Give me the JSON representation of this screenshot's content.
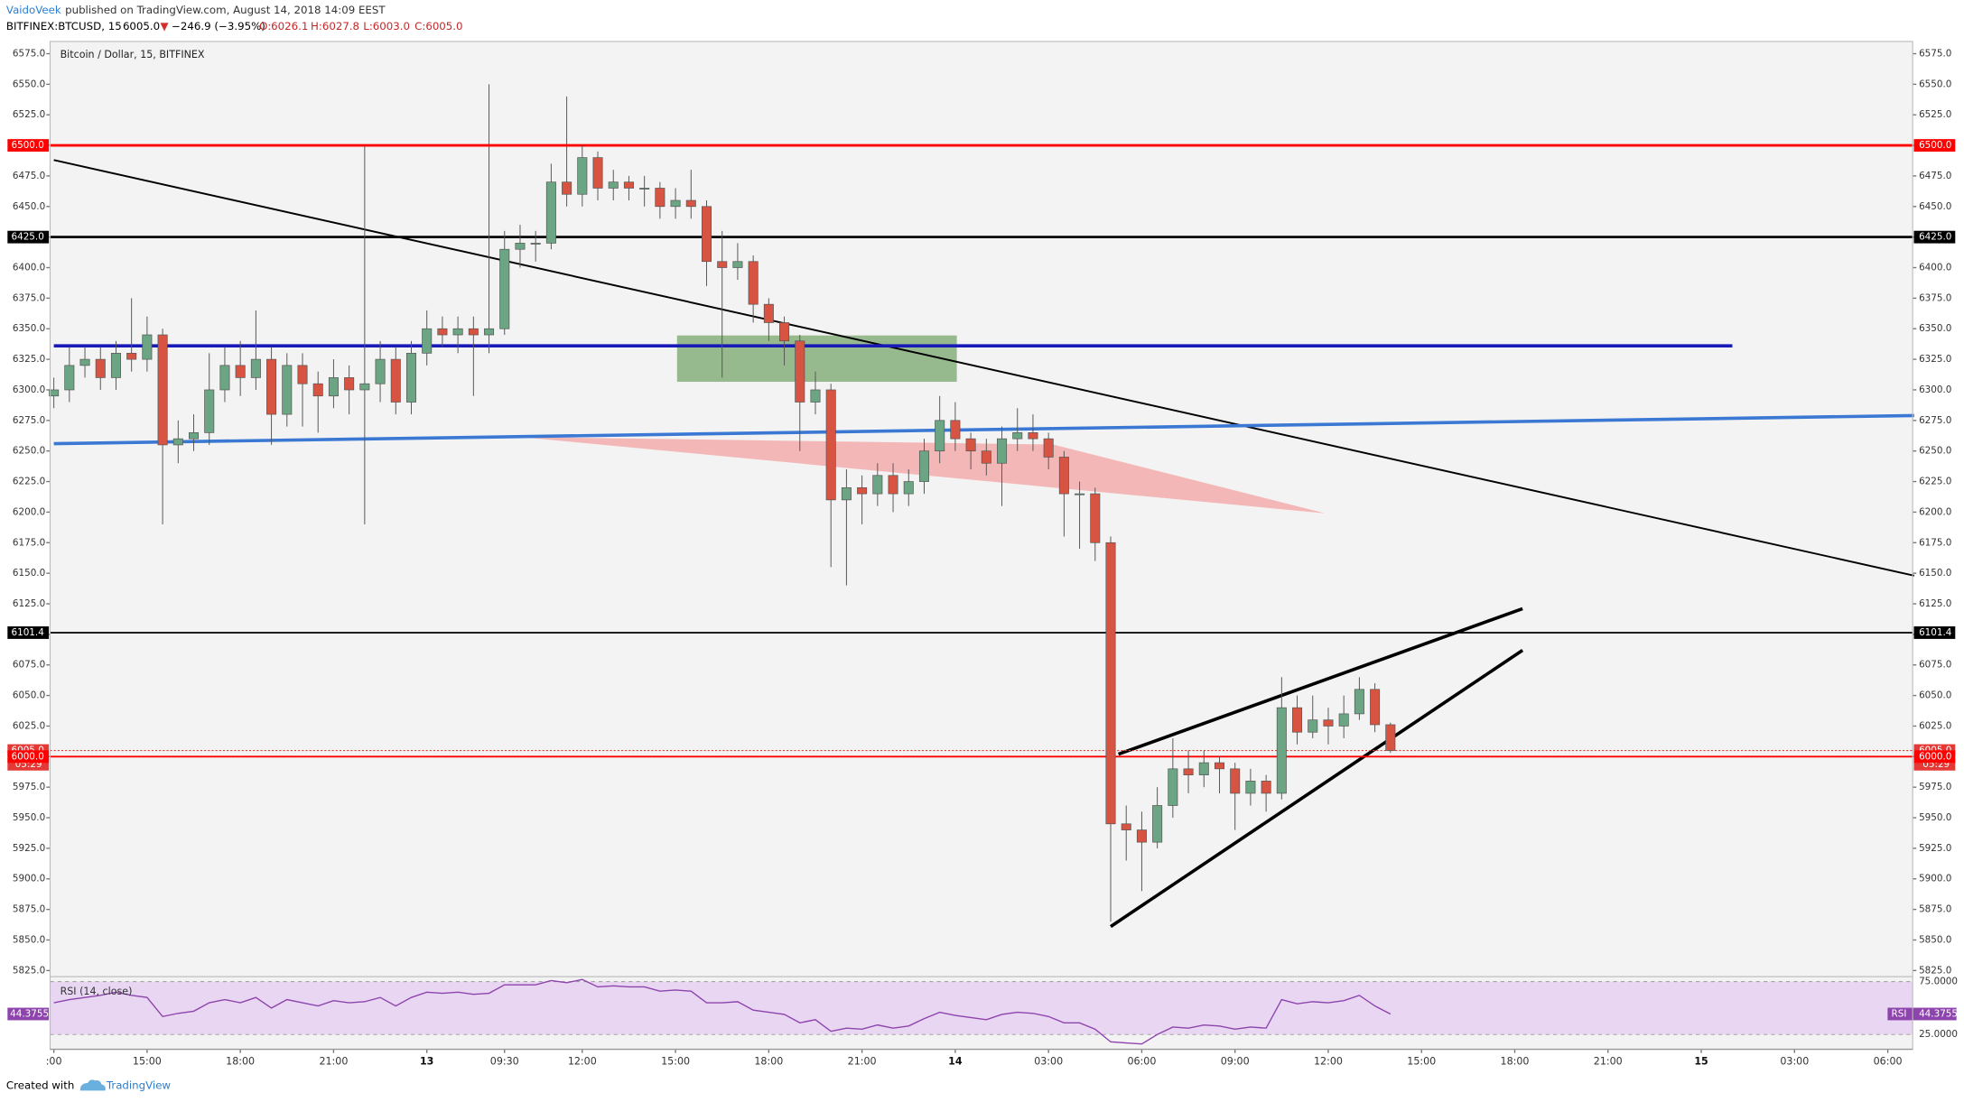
{
  "header": {
    "author": "VaidoVeek",
    "published": "published on TradingView.com, August 14, 2018 14:09 EEST",
    "symbol": "BITFINEX:BTCUSD, 15",
    "price": "6005.0",
    "arrow": "▼",
    "change": "−246.9 (−3.95%)",
    "o": "O:6026.1",
    "h": "H:6027.8",
    "l": "L:6003.0",
    "c": "C:6005.0"
  },
  "footer": {
    "created": "Created with",
    "brand": "TradingView"
  },
  "chart_data": [
    {
      "type": "candlestick",
      "title": "Bitcoin / Dollar, 15, BITFINEX",
      "up_color": "#6ba583",
      "down_color": "#d75442",
      "background": "#f3f3f3",
      "xlim": [
        -0.24,
        119.6
      ],
      "xticks": [
        {
          "value": 0,
          "label": ":00"
        },
        {
          "value": 6,
          "label": "15:00"
        },
        {
          "value": 12,
          "label": "18:00"
        },
        {
          "value": 18,
          "label": "21:00"
        },
        {
          "value": 24,
          "label": "13"
        },
        {
          "value": 29,
          "label": "09:30"
        },
        {
          "value": 34,
          "label": "12:00"
        },
        {
          "value": 40,
          "label": "15:00"
        },
        {
          "value": 46,
          "label": "18:00"
        },
        {
          "value": 52,
          "label": "21:00"
        },
        {
          "value": 58,
          "label": "14"
        },
        {
          "value": 64,
          "label": "03:00"
        },
        {
          "value": 70,
          "label": "06:00"
        },
        {
          "value": 76,
          "label": "09:00"
        },
        {
          "value": 82,
          "label": "12:00"
        },
        {
          "value": 88,
          "label": "15:00"
        },
        {
          "value": 94,
          "label": "18:00"
        },
        {
          "value": 100,
          "label": "21:00"
        },
        {
          "value": 106,
          "label": "15"
        },
        {
          "value": 112,
          "label": "03:00"
        },
        {
          "value": 118,
          "label": "06:00"
        }
      ],
      "ylim": [
        5820,
        6585
      ],
      "yticks": [
        {
          "value": 6575,
          "label": "6575.0"
        },
        {
          "value": 6550,
          "label": "6550.0"
        },
        {
          "value": 6525,
          "label": "6525.0"
        },
        {
          "value": 6500,
          "label": "6500.0"
        },
        {
          "value": 6475,
          "label": "6475.0"
        },
        {
          "value": 6450,
          "label": "6450.0"
        },
        {
          "value": 6425,
          "label": "6425.0"
        },
        {
          "value": 6400,
          "label": "6400.0"
        },
        {
          "value": 6375,
          "label": "6375.0"
        },
        {
          "value": 6350,
          "label": "6350.0"
        },
        {
          "value": 6325,
          "label": "6325.0"
        },
        {
          "value": 6300,
          "label": "6300.0"
        },
        {
          "value": 6275,
          "label": "6275.0"
        },
        {
          "value": 6250,
          "label": "6250.0"
        },
        {
          "value": 6225,
          "label": "6225.0"
        },
        {
          "value": 6200,
          "label": "6200.0"
        },
        {
          "value": 6175,
          "label": "6175.0"
        },
        {
          "value": 6150,
          "label": "6150.0"
        },
        {
          "value": 6125,
          "label": "6125.0"
        },
        {
          "value": 6100,
          "label": "6100.0"
        },
        {
          "value": 6075,
          "label": "6075.0"
        },
        {
          "value": 6050,
          "label": "6050.0"
        },
        {
          "value": 6025,
          "label": "6025.0"
        },
        {
          "value": 6000,
          "label": "6000.0"
        },
        {
          "value": 5975,
          "label": "5975.0"
        },
        {
          "value": 5950,
          "label": "5950.0"
        },
        {
          "value": 5925,
          "label": "5925.0"
        },
        {
          "value": 5900,
          "label": "5900.0"
        },
        {
          "value": 5875,
          "label": "5875.0"
        },
        {
          "value": 5850,
          "label": "5850.0"
        },
        {
          "value": 5825,
          "label": "5825.0"
        }
      ],
      "open": [
        6295,
        6300,
        6320,
        6325,
        6310,
        6330,
        6325,
        6345,
        6255,
        6260,
        6265,
        6300,
        6320,
        6310,
        6325,
        6280,
        6320,
        6305,
        6295,
        6310,
        6300,
        6305,
        6325,
        6290,
        6330,
        6350,
        6345,
        6350,
        6345,
        6350,
        6415,
        6420,
        6420,
        6470,
        6460,
        6490,
        6465,
        6470,
        6465,
        6465,
        6450,
        6455,
        6450,
        6405,
        6400,
        6405,
        6370,
        6355,
        6340,
        6290,
        6300,
        6210,
        6220,
        6215,
        6230,
        6215,
        6225,
        6250,
        6275,
        6260,
        6250,
        6240,
        6260,
        6265,
        6260,
        6245,
        6215,
        6215,
        6175,
        5945,
        5940,
        5930,
        5960,
        5990,
        5985,
        5995,
        5990,
        5970,
        5980,
        5970,
        6040,
        6020,
        6030,
        6025,
        6035,
        6055,
        6026.1
      ],
      "high": [
        6310,
        6335,
        6335,
        6335,
        6340,
        6375,
        6360,
        6350,
        6275,
        6280,
        6330,
        6335,
        6340,
        6365,
        6335,
        6330,
        6330,
        6315,
        6325,
        6320,
        6500,
        6340,
        6335,
        6340,
        6365,
        6360,
        6360,
        6360,
        6550,
        6430,
        6435,
        6430,
        6485,
        6540,
        6500,
        6495,
        6480,
        6475,
        6475,
        6470,
        6465,
        6480,
        6455,
        6430,
        6420,
        6410,
        6375,
        6360,
        6345,
        6315,
        6305,
        6235,
        6230,
        6240,
        6240,
        6235,
        6260,
        6295,
        6290,
        6265,
        6260,
        6270,
        6285,
        6280,
        6265,
        6250,
        6225,
        6220,
        6180,
        5960,
        5955,
        5975,
        6015,
        6005,
        6005,
        6000,
        5995,
        5990,
        5985,
        6065,
        6050,
        6050,
        6040,
        6050,
        6065,
        6060,
        6027.8
      ],
      "low": [
        6285,
        6290,
        6310,
        6300,
        6300,
        6315,
        6315,
        6190,
        6240,
        6250,
        6255,
        6290,
        6295,
        6300,
        6255,
        6270,
        6270,
        6265,
        6285,
        6280,
        6190,
        6290,
        6280,
        6280,
        6320,
        6335,
        6330,
        6295,
        6330,
        6345,
        6400,
        6405,
        6415,
        6450,
        6450,
        6455,
        6455,
        6455,
        6450,
        6440,
        6440,
        6440,
        6385,
        6310,
        6390,
        6355,
        6340,
        6320,
        6250,
        6280,
        6155,
        6140,
        6190,
        6205,
        6200,
        6205,
        6215,
        6240,
        6250,
        6235,
        6230,
        6205,
        6250,
        6250,
        6235,
        6180,
        6170,
        6160,
        5865,
        5915,
        5890,
        5925,
        5950,
        5970,
        5975,
        5970,
        5940,
        5960,
        5955,
        5965,
        6010,
        6015,
        6010,
        6015,
        6030,
        6020,
        6003
      ],
      "close": [
        6300,
        6320,
        6325,
        6310,
        6330,
        6325,
        6345,
        6255,
        6260,
        6265,
        6300,
        6320,
        6310,
        6325,
        6280,
        6320,
        6305,
        6295,
        6310,
        6300,
        6305,
        6325,
        6290,
        6330,
        6350,
        6345,
        6350,
        6345,
        6350,
        6415,
        6420,
        6420,
        6470,
        6460,
        6490,
        6465,
        6470,
        6465,
        6465,
        6450,
        6455,
        6450,
        6405,
        6400,
        6405,
        6370,
        6355,
        6340,
        6290,
        6300,
        6210,
        6220,
        6215,
        6230,
        6215,
        6225,
        6250,
        6275,
        6260,
        6250,
        6240,
        6260,
        6265,
        6260,
        6245,
        6215,
        6215,
        6175,
        5945,
        5940,
        5930,
        5960,
        5990,
        5985,
        5995,
        5990,
        5970,
        5980,
        5970,
        6040,
        6020,
        6030,
        6025,
        6035,
        6055,
        6026.1,
        6005
      ],
      "levels": [
        {
          "value": 6500,
          "label": "6500.0",
          "color": "#ff0000",
          "weight": "bold"
        },
        {
          "value": 6425,
          "label": "6425.0",
          "color": "#000000",
          "weight": "bold"
        },
        {
          "value": 6101.4,
          "label": "6101.4",
          "color": "#000000"
        },
        {
          "value": 6005,
          "label": "6005.0",
          "color": "#e53935",
          "style": "dotted"
        },
        {
          "value": 6000,
          "label": "6000.0",
          "color": "#ff0000"
        }
      ],
      "countdown": "05:29",
      "drawings": [
        {
          "shape": "polygon",
          "x": [
            30,
            64.3,
            81.8
          ],
          "y": [
            6261.5,
            6255.3,
            6199
          ],
          "color": "#f4a3a3"
        },
        {
          "shape": "rect",
          "x": [
            40.1,
            58.1
          ],
          "y": [
            6306.6,
            6344.5
          ],
          "color": "#6f9f62"
        },
        {
          "shape": "line",
          "x": [
            0,
            119.7
          ],
          "y": [
            6488,
            6148
          ],
          "color": "#000000"
        },
        {
          "shape": "line",
          "x": [
            0,
            108
          ],
          "y": [
            6336,
            6336
          ],
          "color": "#1a1ab8",
          "weight": "bold"
        },
        {
          "shape": "line",
          "x": [
            0,
            119.7
          ],
          "y": [
            6256,
            6279
          ],
          "color": "#3a78d4",
          "weight": "bold"
        },
        {
          "shape": "line",
          "x": [
            68.5,
            94.5
          ],
          "y": [
            6002,
            6121
          ],
          "color": "#000000",
          "weight": "bold"
        },
        {
          "shape": "line",
          "x": [
            68,
            94.5
          ],
          "y": [
            5861,
            6087
          ],
          "color": "#000000",
          "weight": "bold"
        }
      ]
    },
    {
      "type": "line",
      "title": "RSI (14, close)",
      "tag": "RSI",
      "color": "#8e44ad",
      "band_color": "#e8d6f2",
      "ylim": [
        11,
        79.7
      ],
      "yticks": [
        {
          "value": 75,
          "label": "75.0000"
        },
        {
          "value": 25,
          "label": "25.0000"
        }
      ],
      "values": [
        55,
        58,
        60,
        62,
        65,
        62,
        60,
        42,
        45,
        47,
        55,
        58,
        55,
        60,
        50,
        58,
        55,
        52,
        57,
        55,
        56,
        60,
        52,
        60,
        65,
        64,
        65,
        63,
        64,
        72,
        72,
        72,
        76,
        74,
        77,
        70,
        71,
        70,
        70,
        66,
        67,
        66,
        55,
        55,
        56,
        48,
        46,
        44,
        36,
        39,
        28,
        31,
        30,
        34,
        31,
        33,
        40,
        46,
        43,
        41,
        39,
        44,
        46,
        45,
        42,
        36,
        36,
        30,
        18,
        17,
        16,
        25,
        32,
        31,
        34,
        33,
        30,
        32,
        31,
        58,
        54,
        56,
        55,
        57,
        62,
        52,
        44.3755
      ]
    }
  ]
}
